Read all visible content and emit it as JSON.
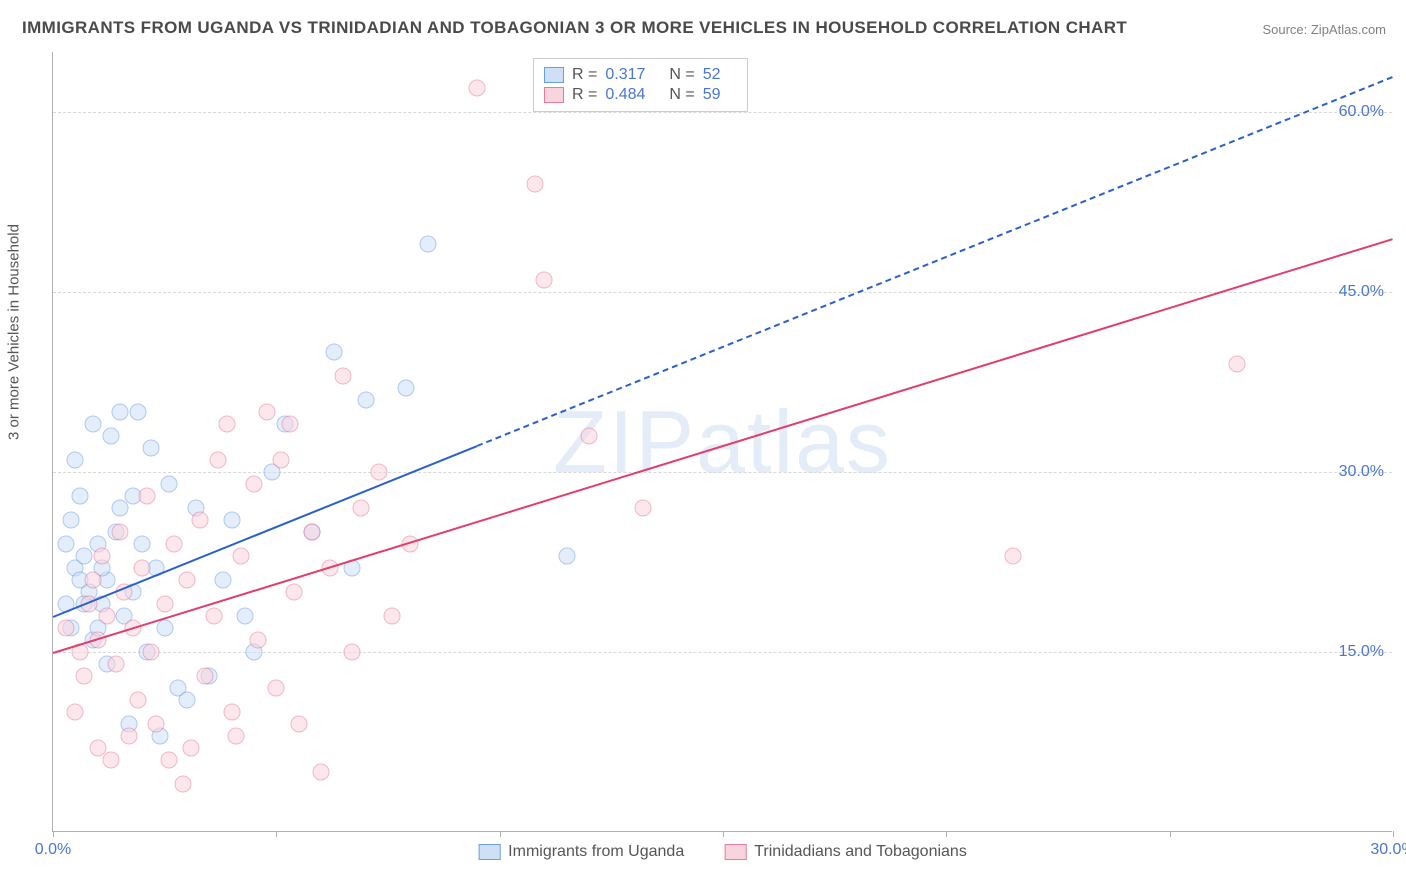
{
  "title": "IMMIGRANTS FROM UGANDA VS TRINIDADIAN AND TOBAGONIAN 3 OR MORE VEHICLES IN HOUSEHOLD CORRELATION CHART",
  "source": "Source: ZipAtlas.com",
  "watermark": "ZIPatlas",
  "ylabel": "3 or more Vehicles in Household",
  "chart": {
    "type": "scatter-correlation",
    "background_color": "#ffffff",
    "axis_color": "#b0b0b0",
    "grid_color": "#d8d8d8",
    "grid_style": "dashed",
    "title_fontsize": 17,
    "tick_fontsize": 16,
    "label_color": "#4a75d8",
    "xlim": [
      0,
      30
    ],
    "ylim": [
      0,
      65
    ],
    "ytick_positions": [
      15,
      30,
      45,
      60
    ],
    "ytick_labels": [
      "15.0%",
      "30.0%",
      "45.0%",
      "60.0%"
    ],
    "xtick_positions": [
      0,
      5,
      10,
      15,
      20,
      25,
      30
    ],
    "xtick_labels_shown": {
      "0": "0.0%",
      "30": "30.0%"
    },
    "point_radius": 8.5,
    "point_opacity": 0.55
  },
  "series": [
    {
      "name": "Immigrants from Uganda",
      "fill": "#cfe0f6",
      "stroke": "#6a9de8",
      "line_color": "#2a5fd0",
      "line_width": 2.5,
      "R": "0.317",
      "N": "52",
      "trend": {
        "x0": 0,
        "y0": 18.0,
        "x1": 30,
        "y1": 63.0,
        "solid_until_x": 9.5
      },
      "points": [
        [
          0.3,
          19
        ],
        [
          0.5,
          22
        ],
        [
          0.4,
          17
        ],
        [
          0.8,
          20
        ],
        [
          1.0,
          24
        ],
        [
          0.6,
          28
        ],
        [
          1.2,
          21
        ],
        [
          0.9,
          16
        ],
        [
          1.4,
          25
        ],
        [
          1.1,
          19
        ],
        [
          1.5,
          27
        ],
        [
          0.7,
          23
        ],
        [
          1.8,
          20
        ],
        [
          2.0,
          24
        ],
        [
          1.6,
          18
        ],
        [
          2.3,
          22
        ],
        [
          1.3,
          33
        ],
        [
          1.9,
          35
        ],
        [
          0.5,
          31
        ],
        [
          2.6,
          29
        ],
        [
          3.2,
          27
        ],
        [
          2.1,
          15
        ],
        [
          2.8,
          12
        ],
        [
          3.5,
          13
        ],
        [
          4.0,
          26
        ],
        [
          4.9,
          30
        ],
        [
          5.8,
          25
        ],
        [
          6.3,
          40
        ],
        [
          7.0,
          36
        ],
        [
          7.9,
          37
        ],
        [
          8.4,
          49
        ],
        [
          4.3,
          18
        ],
        [
          3.0,
          11
        ],
        [
          1.7,
          9
        ],
        [
          2.4,
          8
        ],
        [
          1.5,
          35
        ],
        [
          0.9,
          34
        ],
        [
          11.5,
          23
        ],
        [
          0.4,
          26
        ],
        [
          0.6,
          21
        ],
        [
          1.0,
          17
        ],
        [
          1.2,
          14
        ],
        [
          2.2,
          32
        ],
        [
          3.8,
          21
        ],
        [
          5.2,
          34
        ],
        [
          6.7,
          22
        ],
        [
          0.3,
          24
        ],
        [
          0.7,
          19
        ],
        [
          1.1,
          22
        ],
        [
          1.8,
          28
        ],
        [
          2.5,
          17
        ],
        [
          4.5,
          15
        ]
      ]
    },
    {
      "name": "Trinidadians and Tobagonians",
      "fill": "#f8d5de",
      "stroke": "#e87a9a",
      "line_color": "#e23d6b",
      "line_width": 2.5,
      "R": "0.484",
      "N": "59",
      "trend": {
        "x0": 0,
        "y0": 15.0,
        "x1": 30,
        "y1": 49.5,
        "solid_until_x": 30
      },
      "points": [
        [
          0.3,
          17
        ],
        [
          0.6,
          15
        ],
        [
          0.8,
          19
        ],
        [
          1.0,
          16
        ],
        [
          1.2,
          18
        ],
        [
          0.9,
          21
        ],
        [
          1.4,
          14
        ],
        [
          1.6,
          20
        ],
        [
          1.1,
          23
        ],
        [
          1.8,
          17
        ],
        [
          2.0,
          22
        ],
        [
          2.2,
          15
        ],
        [
          1.5,
          25
        ],
        [
          2.5,
          19
        ],
        [
          2.7,
          24
        ],
        [
          3.0,
          21
        ],
        [
          3.3,
          26
        ],
        [
          3.6,
          18
        ],
        [
          3.9,
          34
        ],
        [
          4.2,
          23
        ],
        [
          4.5,
          29
        ],
        [
          4.8,
          35
        ],
        [
          5.1,
          31
        ],
        [
          5.4,
          20
        ],
        [
          5.8,
          25
        ],
        [
          6.2,
          22
        ],
        [
          6.5,
          38
        ],
        [
          6.9,
          27
        ],
        [
          7.3,
          30
        ],
        [
          2.3,
          9
        ],
        [
          1.7,
          8
        ],
        [
          3.1,
          7
        ],
        [
          4.0,
          10
        ],
        [
          5.5,
          9
        ],
        [
          6.0,
          5
        ],
        [
          2.9,
          4
        ],
        [
          1.3,
          6
        ],
        [
          0.5,
          10
        ],
        [
          9.5,
          62
        ],
        [
          10.8,
          54
        ],
        [
          13.2,
          27
        ],
        [
          12.0,
          33
        ],
        [
          11.0,
          46
        ],
        [
          21.5,
          23
        ],
        [
          26.5,
          39
        ],
        [
          0.7,
          13
        ],
        [
          1.9,
          11
        ],
        [
          3.4,
          13
        ],
        [
          4.6,
          16
        ],
        [
          5.0,
          12
        ],
        [
          6.7,
          15
        ],
        [
          7.6,
          18
        ],
        [
          8.0,
          24
        ],
        [
          2.1,
          28
        ],
        [
          3.7,
          31
        ],
        [
          5.3,
          34
        ],
        [
          1.0,
          7
        ],
        [
          2.6,
          6
        ],
        [
          4.1,
          8
        ]
      ]
    }
  ]
}
